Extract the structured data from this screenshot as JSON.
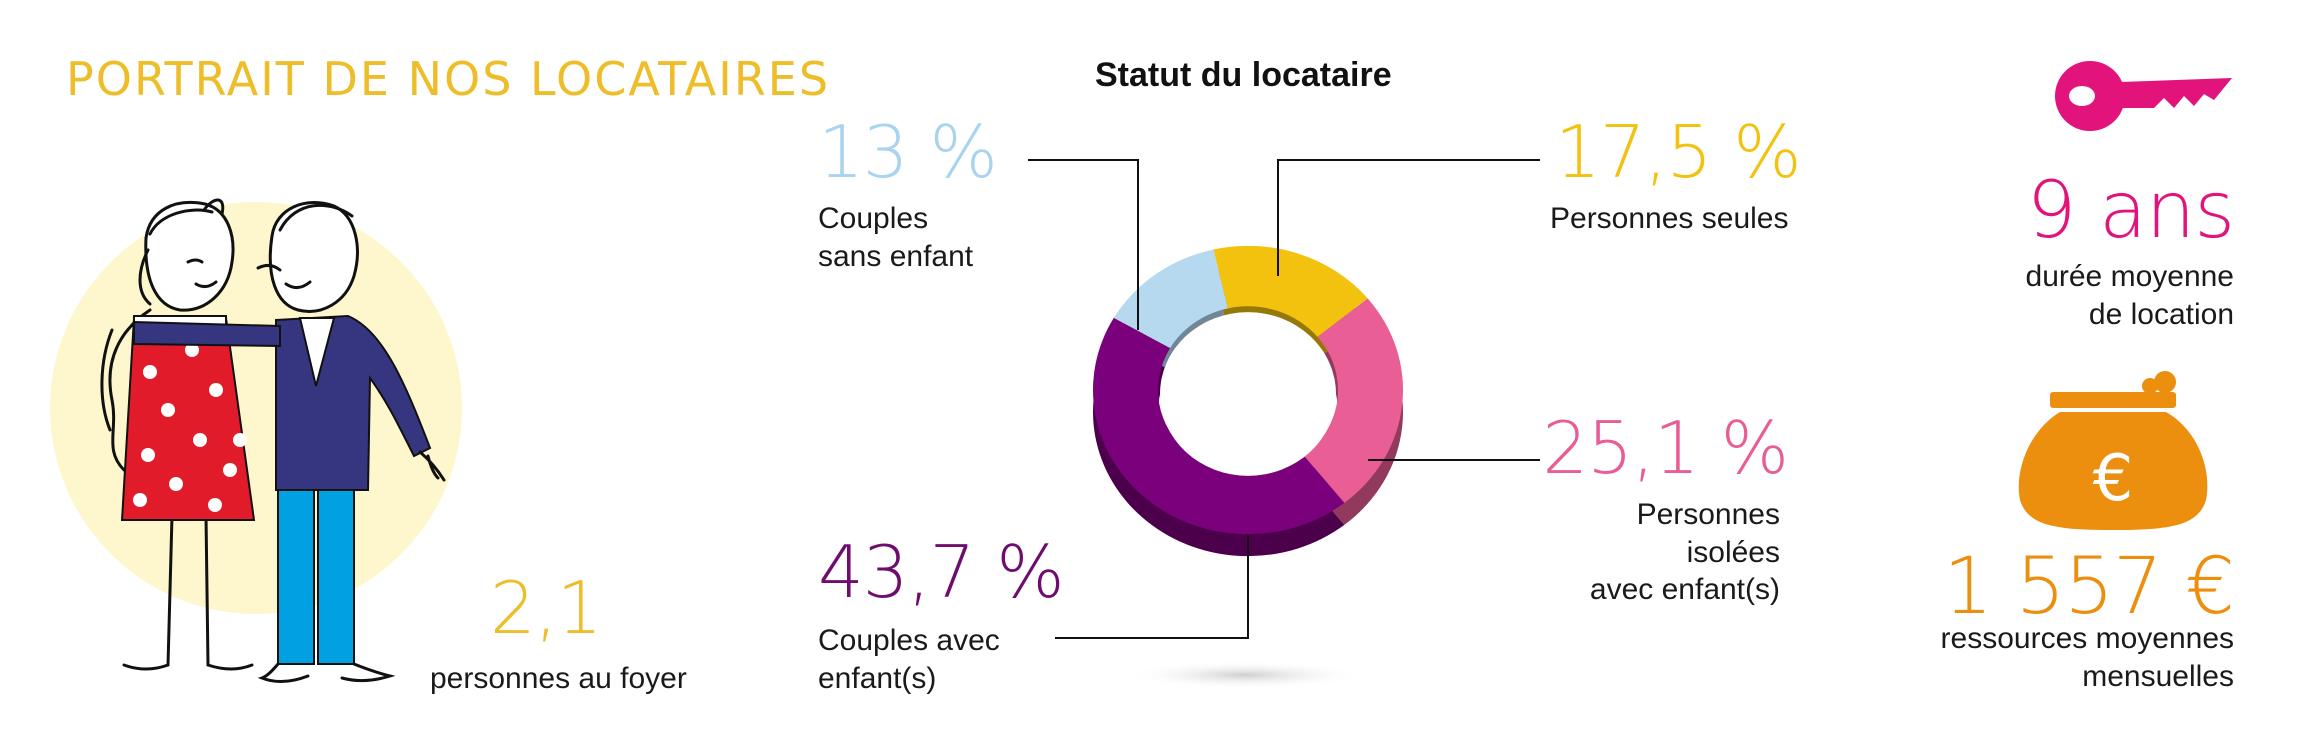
{
  "header": {
    "title": "PORTRAIT DE NOS LOCATAIRES"
  },
  "household": {
    "value": "2,1",
    "label": "personnes au foyer"
  },
  "chart_data": {
    "type": "pie",
    "title": "Statut du locataire",
    "donut": true,
    "slices": [
      {
        "label_lines": [
          "Couples",
          "sans enfant"
        ],
        "value": 13,
        "display": "13 %",
        "color": "#B6D9F0"
      },
      {
        "label_lines": [
          "Personnes seules"
        ],
        "value": 17.5,
        "display": "17,5 %",
        "color": "#F2C20F"
      },
      {
        "label_lines": [
          "Personnes",
          "isolées",
          "avec enfant(s)"
        ],
        "value": 25.1,
        "display": "25,1 %",
        "color": "#EA5E96"
      },
      {
        "label_lines": [
          "Couples avec",
          "enfant(s)"
        ],
        "value": 43.7,
        "display": "43,7 %",
        "color": "#7B007B"
      }
    ]
  },
  "stats": {
    "duration": {
      "value": "9 ans",
      "line1": "durée moyenne",
      "line2": "de location"
    },
    "resources": {
      "value": "1 557 €",
      "line1": "ressources moyennes",
      "line2": "mensuelles"
    }
  },
  "colors": {
    "title_yellow": "#EDBE2A",
    "magenta": "#E2147C",
    "orange": "#EC8E0E",
    "purple": "#6F0D6F",
    "pink": "#E85D95",
    "light_blue": "#A9D3EE",
    "navy": "#36357F",
    "red": "#E11B2A",
    "cyan": "#00A0E3"
  },
  "icons": {
    "key": "key-icon",
    "purse": "euro-purse-icon",
    "couple": "couple-illustration"
  }
}
